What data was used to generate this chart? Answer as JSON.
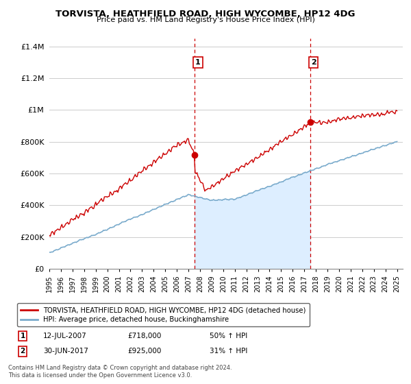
{
  "title": "TORVISTA, HEATHFIELD ROAD, HIGH WYCOMBE, HP12 4DG",
  "subtitle": "Price paid vs. HM Land Registry's House Price Index (HPI)",
  "ylabel_ticks": [
    "£0",
    "£200K",
    "£400K",
    "£600K",
    "£800K",
    "£1M",
    "£1.2M",
    "£1.4M"
  ],
  "ytick_values": [
    0,
    200000,
    400000,
    600000,
    800000,
    1000000,
    1200000,
    1400000
  ],
  "ylim": [
    0,
    1450000
  ],
  "sale1_x": 2007.53,
  "sale2_x": 2017.5,
  "sale1_price": 718000,
  "sale2_price": 925000,
  "red_line_color": "#cc0000",
  "blue_line_color": "#7aabcc",
  "fill_color": "#ddeeff",
  "vline_color": "#cc0000",
  "grid_color": "#cccccc",
  "legend_label1": "TORVISTA, HEATHFIELD ROAD, HIGH WYCOMBE, HP12 4DG (detached house)",
  "legend_label2": "HPI: Average price, detached house, Buckinghamshire",
  "sale1_date": "12-JUL-2007",
  "sale2_date": "30-JUN-2017",
  "sale1_hpi": "50%",
  "sale2_hpi": "31%",
  "footer1": "Contains HM Land Registry data © Crown copyright and database right 2024.",
  "footer2": "This data is licensed under the Open Government Licence v3.0."
}
